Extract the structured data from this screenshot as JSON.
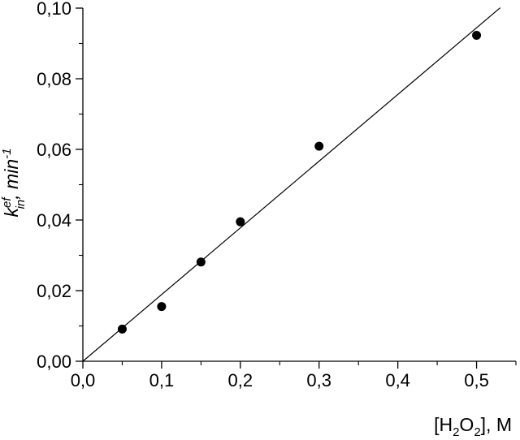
{
  "chart_data": {
    "type": "scatter",
    "xlabel": {
      "open": "[H",
      "sub1": "2",
      "mid": "O",
      "sub2": "2",
      "close": "], M"
    },
    "ylabel": {
      "k": "k",
      "sup": "ef",
      "sub": "in",
      "rest": ", min",
      "exp": "-1"
    },
    "xlim": [
      0.0,
      0.55
    ],
    "ylim": [
      0.0,
      0.1
    ],
    "x_ticks": [
      {
        "value": 0.0,
        "label": "0,0"
      },
      {
        "value": 0.1,
        "label": "0,1"
      },
      {
        "value": 0.2,
        "label": "0,2"
      },
      {
        "value": 0.3,
        "label": "0,3"
      },
      {
        "value": 0.4,
        "label": "0,4"
      },
      {
        "value": 0.5,
        "label": "0,5"
      }
    ],
    "y_ticks": [
      {
        "value": 0.0,
        "label": "0,00"
      },
      {
        "value": 0.02,
        "label": "0,02"
      },
      {
        "value": 0.04,
        "label": "0,04"
      },
      {
        "value": 0.06,
        "label": "0,06"
      },
      {
        "value": 0.08,
        "label": "0,08"
      },
      {
        "value": 0.1,
        "label": "0,10"
      }
    ],
    "x_minor_step": 0.05,
    "y_minor_step": 0.01,
    "grid": false,
    "legend": "none",
    "series": [
      {
        "x": [
          0.05,
          0.1,
          0.15,
          0.2,
          0.3,
          0.5
        ],
        "y": [
          0.0091,
          0.0155,
          0.0281,
          0.0395,
          0.0609,
          0.0923
        ]
      }
    ],
    "fit_line": {
      "x": [
        0.0,
        0.53
      ],
      "y": [
        0.0,
        0.1001
      ]
    }
  }
}
